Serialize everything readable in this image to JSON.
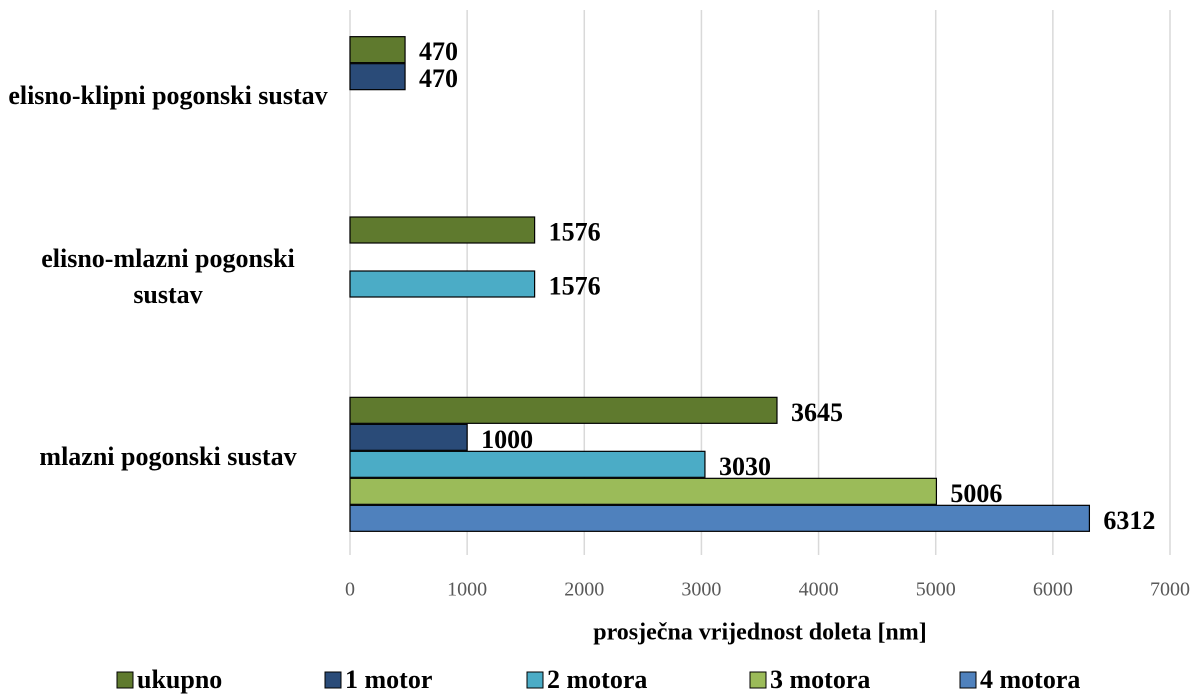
{
  "chart_data": {
    "type": "hbar",
    "categories": [
      "elisno-klipni pogonski sustav",
      "elisno-mlazni pogonski sustav",
      "mlazni pogonski sustav"
    ],
    "series": [
      {
        "name": "ukupno",
        "color": "#5f7a2e",
        "values": [
          470,
          1576,
          3645
        ]
      },
      {
        "name": "1 motor",
        "color": "#2a4b78",
        "values": [
          470,
          null,
          1000
        ]
      },
      {
        "name": "2 motora",
        "color": "#4bacc6",
        "values": [
          null,
          1576,
          3030
        ]
      },
      {
        "name": "3 motora",
        "color": "#9bbb59",
        "values": [
          null,
          null,
          5006
        ]
      },
      {
        "name": "4 motora",
        "color": "#4f81bd",
        "values": [
          null,
          null,
          6312
        ]
      }
    ],
    "xlabel": "prosječna vrijednost doleta [nm]",
    "xlim": [
      0,
      7000
    ],
    "xticks": [
      0,
      1000,
      2000,
      3000,
      4000,
      5000,
      6000,
      7000
    ],
    "grid": true,
    "legend": "bottom"
  }
}
